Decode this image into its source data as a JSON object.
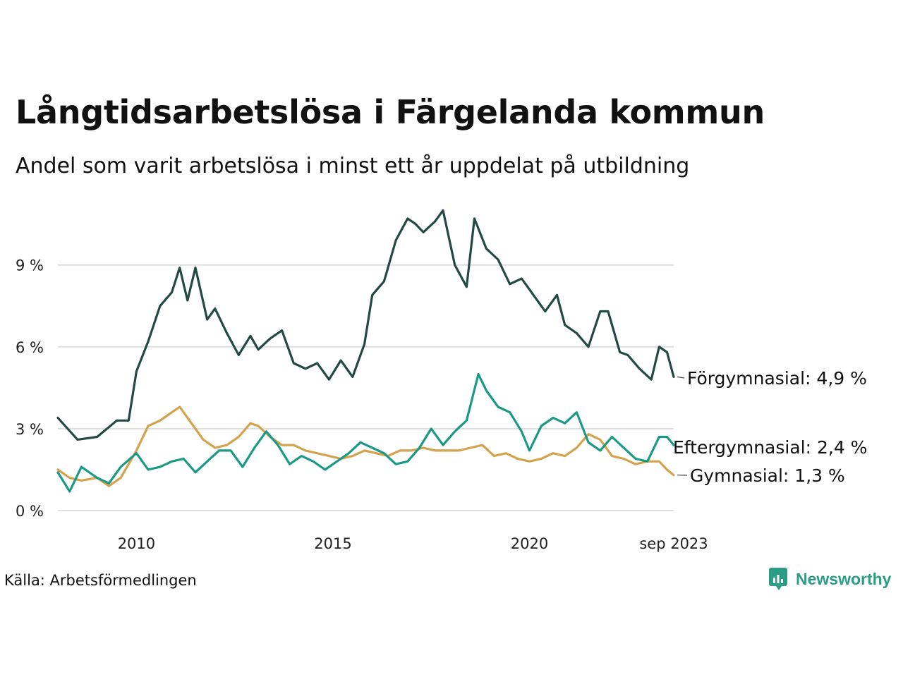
{
  "title": "Långtidsarbetslösa i Färgelanda kommun",
  "subtitle": "Andel som varit arbetslösa i minst ett år uppdelat på utbildning",
  "source": "Källa: Arbetsförmedlingen",
  "brand": "Newsworthy",
  "colors": {
    "forgymnasial": "#214a43",
    "eftergymnasial": "#1a9a85",
    "gymnasial": "#d4a24c",
    "grid": "#dddddd",
    "brand": "#2a9d85"
  },
  "chart_data": {
    "type": "line",
    "title": "Långtidsarbetslösa i Färgelanda kommun",
    "xlabel": "",
    "ylabel": "",
    "x_ticks": [
      "2010",
      "2015",
      "2020",
      "sep 2023"
    ],
    "y_ticks": [
      "0 %",
      "3 %",
      "6 %",
      "9 %"
    ],
    "ylim": [
      0,
      11.5
    ],
    "xlim": [
      2008.0,
      2023.67
    ],
    "series": [
      {
        "name": "Förgymnasial",
        "end_label": "Förgymnasial: 4,9 %",
        "x": [
          2008.0,
          2008.5,
          2009.0,
          2009.5,
          2009.8,
          2010.0,
          2010.3,
          2010.6,
          2010.9,
          2011.1,
          2011.3,
          2011.5,
          2011.8,
          2012.0,
          2012.3,
          2012.6,
          2012.9,
          2013.1,
          2013.4,
          2013.7,
          2014.0,
          2014.3,
          2014.6,
          2014.9,
          2015.2,
          2015.5,
          2015.8,
          2016.0,
          2016.3,
          2016.6,
          2016.9,
          2017.1,
          2017.3,
          2017.6,
          2017.8,
          2018.1,
          2018.4,
          2018.6,
          2018.9,
          2019.2,
          2019.5,
          2019.8,
          2020.1,
          2020.4,
          2020.7,
          2020.9,
          2021.2,
          2021.5,
          2021.8,
          2022.0,
          2022.3,
          2022.5,
          2022.8,
          2023.1,
          2023.3,
          2023.5,
          2023.67
        ],
        "y": [
          3.4,
          2.6,
          2.7,
          3.3,
          3.3,
          5.1,
          6.2,
          7.5,
          8.0,
          8.9,
          7.7,
          8.9,
          7.0,
          7.4,
          6.5,
          5.7,
          6.4,
          5.9,
          6.3,
          6.6,
          5.4,
          5.2,
          5.4,
          4.8,
          5.5,
          4.9,
          6.1,
          7.9,
          8.4,
          9.9,
          10.7,
          10.5,
          10.2,
          10.6,
          11.0,
          9.0,
          8.2,
          10.7,
          9.6,
          9.2,
          8.3,
          8.5,
          7.9,
          7.3,
          7.9,
          6.8,
          6.5,
          6.0,
          7.3,
          7.3,
          5.8,
          5.7,
          5.2,
          4.8,
          6.0,
          5.8,
          4.9
        ]
      },
      {
        "name": "Eftergymnasial",
        "end_label": "Eftergymnasial: 2,4 %",
        "x": [
          2008.0,
          2008.3,
          2008.6,
          2009.0,
          2009.3,
          2009.6,
          2010.0,
          2010.3,
          2010.6,
          2010.9,
          2011.2,
          2011.5,
          2011.8,
          2012.1,
          2012.4,
          2012.7,
          2013.0,
          2013.3,
          2013.6,
          2013.9,
          2014.2,
          2014.5,
          2014.8,
          2015.1,
          2015.4,
          2015.7,
          2016.0,
          2016.3,
          2016.6,
          2016.9,
          2017.2,
          2017.5,
          2017.8,
          2018.1,
          2018.4,
          2018.7,
          2018.9,
          2019.2,
          2019.5,
          2019.8,
          2020.0,
          2020.3,
          2020.6,
          2020.9,
          2021.2,
          2021.5,
          2021.8,
          2022.1,
          2022.4,
          2022.7,
          2023.0,
          2023.3,
          2023.5,
          2023.67
        ],
        "y": [
          1.4,
          0.7,
          1.6,
          1.2,
          1.0,
          1.6,
          2.1,
          1.5,
          1.6,
          1.8,
          1.9,
          1.4,
          1.8,
          2.2,
          2.2,
          1.6,
          2.3,
          2.9,
          2.4,
          1.7,
          2.0,
          1.8,
          1.5,
          1.8,
          2.1,
          2.5,
          2.3,
          2.1,
          1.7,
          1.8,
          2.3,
          3.0,
          2.4,
          2.9,
          3.3,
          5.0,
          4.4,
          3.8,
          3.6,
          2.9,
          2.2,
          3.1,
          3.4,
          3.2,
          3.6,
          2.5,
          2.2,
          2.7,
          2.3,
          1.9,
          1.8,
          2.7,
          2.7,
          2.4
        ]
      },
      {
        "name": "Gymnasial",
        "end_label": "Gymnasial: 1,3 %",
        "x": [
          2008.0,
          2008.3,
          2008.6,
          2009.0,
          2009.3,
          2009.6,
          2010.0,
          2010.3,
          2010.6,
          2010.9,
          2011.1,
          2011.4,
          2011.7,
          2012.0,
          2012.3,
          2012.6,
          2012.9,
          2013.1,
          2013.4,
          2013.7,
          2014.0,
          2014.3,
          2014.6,
          2014.9,
          2015.2,
          2015.5,
          2015.8,
          2016.1,
          2016.4,
          2016.7,
          2017.0,
          2017.3,
          2017.6,
          2017.9,
          2018.2,
          2018.5,
          2018.8,
          2019.1,
          2019.4,
          2019.7,
          2020.0,
          2020.3,
          2020.6,
          2020.9,
          2021.2,
          2021.5,
          2021.8,
          2022.1,
          2022.4,
          2022.7,
          2023.0,
          2023.3,
          2023.5,
          2023.67
        ],
        "y": [
          1.5,
          1.2,
          1.1,
          1.2,
          0.9,
          1.2,
          2.2,
          3.1,
          3.3,
          3.6,
          3.8,
          3.2,
          2.6,
          2.3,
          2.4,
          2.7,
          3.2,
          3.1,
          2.7,
          2.4,
          2.4,
          2.2,
          2.1,
          2.0,
          1.9,
          2.0,
          2.2,
          2.1,
          2.0,
          2.2,
          2.2,
          2.3,
          2.2,
          2.2,
          2.2,
          2.3,
          2.4,
          2.0,
          2.1,
          1.9,
          1.8,
          1.9,
          2.1,
          2.0,
          2.3,
          2.8,
          2.6,
          2.0,
          1.9,
          1.7,
          1.8,
          1.8,
          1.5,
          1.3
        ]
      }
    ]
  }
}
